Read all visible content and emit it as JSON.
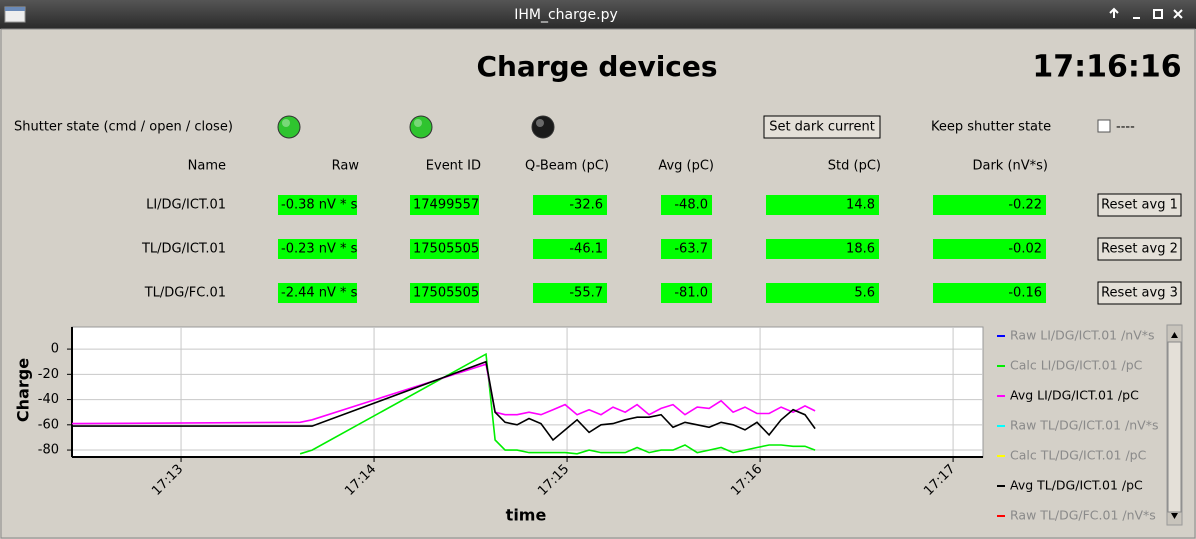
{
  "window": {
    "title": "IHM_charge.py"
  },
  "header": {
    "title": "Charge devices",
    "clock": "17:16:16"
  },
  "controls": {
    "shutter_label": "Shutter state (cmd / open / close)",
    "leds": [
      {
        "color": "#2fc42f"
      },
      {
        "color": "#2fc42f"
      },
      {
        "color": "#1a1a1a"
      }
    ],
    "dark_button": "Set dark current",
    "keep_label": "Keep shutter state",
    "checkbox_label": "----"
  },
  "table": {
    "field_color": "#00ff00",
    "columns": [
      "Name",
      "Raw",
      "Event ID",
      "Q-Beam (pC)",
      "Avg (pC)",
      "Std (pC)",
      "Dark (nV*s)"
    ],
    "rows": [
      [
        "LI/DG/ICT.01",
        "-0.38 nV * s",
        "17499557",
        "-32.6",
        "-48.0",
        "14.8",
        "-0.22"
      ],
      [
        "TL/DG/ICT.01",
        "-0.23 nV * s",
        "17505505",
        "-46.1",
        "-63.7",
        "18.6",
        "-0.02"
      ],
      [
        "TL/DG/FC.01",
        "-2.44 nV * s",
        "17505505",
        "-55.7",
        "-81.0",
        "5.6",
        "-0.16"
      ]
    ],
    "reset_buttons": [
      "Reset avg 1",
      "Reset avg 2",
      "Reset avg 3"
    ]
  },
  "chart_data": {
    "type": "line",
    "xlabel": "time",
    "ylabel": "Charge",
    "grid": true,
    "ylim": [
      -85.5,
      17.5
    ],
    "yticks": [
      0,
      -20,
      -40,
      -60,
      -80
    ],
    "xlim": [
      1032.435,
      1037.155
    ],
    "xticks": [
      {
        "value": 1033,
        "label": "17:13"
      },
      {
        "value": 1034,
        "label": "17:14"
      },
      {
        "value": 1035,
        "label": "17:15"
      },
      {
        "value": 1036,
        "label": "17:16"
      },
      {
        "value": 1037,
        "label": "17:17"
      }
    ],
    "x": [
      1032.435,
      1033.617,
      1033.679,
      1034.58,
      1034.627,
      1034.679,
      1034.741,
      1034.803,
      1034.865,
      1034.927,
      1034.99,
      1035.052,
      1035.114,
      1035.176,
      1035.238,
      1035.301,
      1035.363,
      1035.425,
      1035.487,
      1035.549,
      1035.611,
      1035.674,
      1035.736,
      1035.798,
      1035.86,
      1035.922,
      1035.984,
      1036.047,
      1036.109,
      1036.171,
      1036.233,
      1036.285
    ],
    "series": [
      {
        "name": "Raw LI/DG/ICT.01 /nV*s",
        "color": "#0000ff",
        "visible": false
      },
      {
        "name": "Calc LI/DG/ICT.01 /pC",
        "color": "#00ee00",
        "visible": true,
        "dimmed": true,
        "values": [
          null,
          -83,
          -80,
          -4,
          -72,
          -80,
          -80,
          -82,
          -82,
          -82,
          -82,
          -83,
          -80,
          -82,
          -82,
          -82,
          -78,
          -82,
          -80,
          -80,
          -76,
          -82,
          -80,
          -78,
          -82,
          -80,
          -78,
          -76,
          -76,
          -77,
          -77,
          -80
        ]
      },
      {
        "name": "Avg LI/DG/ICT.01 /pC",
        "color": "#ff00ff",
        "visible": true,
        "values": [
          -59,
          -58,
          -56,
          -12,
          -50,
          -52,
          -52,
          -50,
          -52,
          -48,
          -44,
          -52,
          -48,
          -52,
          -46,
          -50,
          -44,
          -52,
          -47,
          -44,
          -52,
          -46,
          -47,
          -41,
          -50,
          -46,
          -51,
          -51,
          -46,
          -50,
          -45,
          -49
        ]
      },
      {
        "name": "Raw TL/DG/ICT.01 /nV*s",
        "color": "#00ffff",
        "visible": false
      },
      {
        "name": "Calc TL/DG/ICT.01 /pC",
        "color": "#ffff00",
        "visible": false
      },
      {
        "name": "Avg TL/DG/ICT.01 /pC",
        "color": "#000000",
        "visible": true,
        "values": [
          -61,
          -61,
          -61,
          -10,
          -50,
          -58,
          -60,
          -55,
          -59,
          -72,
          -64,
          -56,
          -66,
          -60,
          -59,
          -56,
          -54,
          -54,
          -52,
          -62,
          -58,
          -60,
          -62,
          -58,
          -60,
          -64,
          -58,
          -68,
          -56,
          -48,
          -52,
          -63
        ]
      },
      {
        "name": "Raw TL/DG/FC.01 /nV*s",
        "color": "#ff0000",
        "visible": false
      }
    ]
  }
}
